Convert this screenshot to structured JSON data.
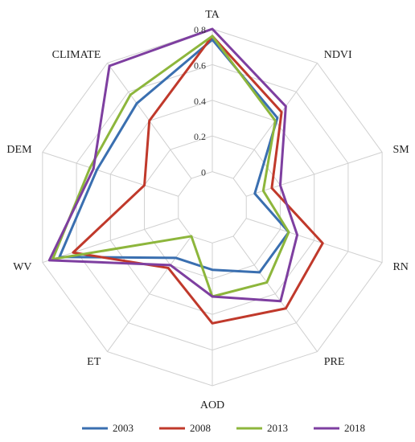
{
  "chart_data": {
    "type": "radar",
    "categories": [
      "TA",
      "NDVI",
      "SM",
      "RN",
      "PRE",
      "AOD",
      "ET",
      "WV",
      "DEM",
      "CLIMATE"
    ],
    "ticks": [
      "0",
      "0.2",
      "0.4",
      "0.6",
      "0.8"
    ],
    "rlim": [
      -0.2,
      0.8
    ],
    "grid": true,
    "legend_position": "bottom",
    "series": [
      {
        "name": "2003",
        "color": "#3a6fb0",
        "values": [
          0.74,
          0.42,
          0.05,
          0.25,
          0.25,
          0.15,
          0.15,
          0.7,
          0.48,
          0.52
        ]
      },
      {
        "name": "2008",
        "color": "#c0392b",
        "values": [
          0.76,
          0.46,
          0.15,
          0.45,
          0.5,
          0.45,
          0.22,
          0.62,
          0.2,
          0.4
        ]
      },
      {
        "name": "2013",
        "color": "#8db63c",
        "values": [
          0.76,
          0.4,
          0.1,
          0.25,
          0.32,
          0.3,
          0.0,
          0.74,
          0.52,
          0.58
        ]
      },
      {
        "name": "2018",
        "color": "#7e3fa0",
        "values": [
          0.8,
          0.5,
          0.2,
          0.3,
          0.45,
          0.3,
          0.2,
          0.76,
          0.5,
          0.78
        ]
      }
    ]
  }
}
